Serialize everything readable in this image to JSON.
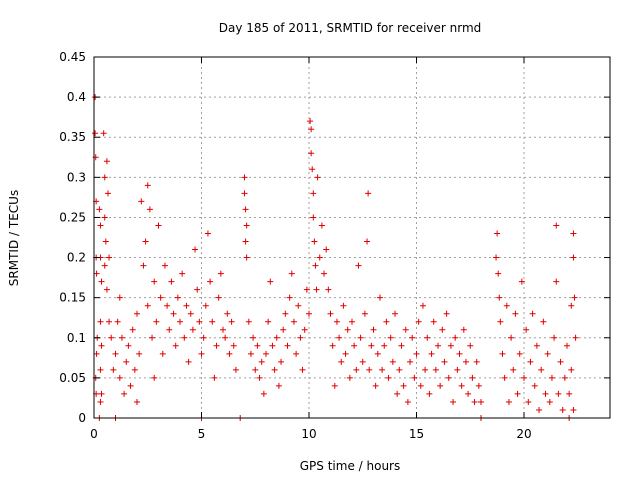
{
  "chart_data": {
    "type": "scatter",
    "title": "Day 185 of 2011, SRMTID for receiver nrmd",
    "xlabel": "GPS time / hours",
    "ylabel": "SRMTID / TECUs",
    "xlim": [
      0,
      24
    ],
    "ylim": [
      0,
      0.45
    ],
    "xticks": [
      "0",
      "5",
      "10",
      "15",
      "20"
    ],
    "yticks": [
      "0",
      "0.05",
      "0.1",
      "0.15",
      "0.2",
      "0.25",
      "0.3",
      "0.35",
      "0.4",
      "0.45"
    ],
    "grid": true,
    "marker": "+",
    "color": "#e00000",
    "series": [
      {
        "points": [
          [
            0.05,
            0.4
          ],
          [
            0.05,
            0.355
          ],
          [
            0.08,
            0.325
          ],
          [
            0.1,
            0.27
          ],
          [
            0.1,
            0.2
          ],
          [
            0.12,
            0.18
          ],
          [
            0.15,
            0.1
          ],
          [
            0.12,
            0.08
          ],
          [
            0.08,
            0.05
          ],
          [
            0.1,
            0.03
          ],
          [
            0.25,
            0.26
          ],
          [
            0.3,
            0.24
          ],
          [
            0.3,
            0.2
          ],
          [
            0.35,
            0.17
          ],
          [
            0.3,
            0.12
          ],
          [
            0.35,
            0.09
          ],
          [
            0.3,
            0.06
          ],
          [
            0.35,
            0.03
          ],
          [
            0.3,
            0.02
          ],
          [
            0.25,
            0.0
          ],
          [
            0.45,
            0.355
          ],
          [
            0.5,
            0.3
          ],
          [
            0.5,
            0.25
          ],
          [
            0.55,
            0.22
          ],
          [
            0.5,
            0.19
          ],
          [
            0.6,
            0.16
          ],
          [
            0.6,
            0.32
          ],
          [
            0.65,
            0.28
          ],
          [
            0.7,
            0.2
          ],
          [
            0.7,
            0.12
          ],
          [
            0.8,
            0.1
          ],
          [
            0.9,
            0.06
          ],
          [
            1.0,
            0.0
          ],
          [
            1.0,
            0.08
          ],
          [
            1.1,
            0.12
          ],
          [
            1.2,
            0.05
          ],
          [
            1.2,
            0.15
          ],
          [
            1.3,
            0.1
          ],
          [
            1.4,
            0.03
          ],
          [
            1.5,
            0.07
          ],
          [
            1.6,
            0.09
          ],
          [
            1.7,
            0.04
          ],
          [
            1.8,
            0.11
          ],
          [
            1.9,
            0.06
          ],
          [
            2.0,
            0.13
          ],
          [
            2.0,
            0.02
          ],
          [
            2.1,
            0.08
          ],
          [
            2.2,
            0.27
          ],
          [
            2.3,
            0.19
          ],
          [
            2.4,
            0.22
          ],
          [
            2.5,
            0.29
          ],
          [
            2.5,
            0.14
          ],
          [
            2.6,
            0.26
          ],
          [
            2.7,
            0.1
          ],
          [
            2.8,
            0.17
          ],
          [
            2.8,
            0.05
          ],
          [
            2.9,
            0.12
          ],
          [
            3.0,
            0.24
          ],
          [
            3.1,
            0.15
          ],
          [
            3.2,
            0.08
          ],
          [
            3.3,
            0.19
          ],
          [
            3.4,
            0.14
          ],
          [
            3.5,
            0.11
          ],
          [
            3.6,
            0.17
          ],
          [
            3.7,
            0.13
          ],
          [
            3.8,
            0.09
          ],
          [
            3.9,
            0.15
          ],
          [
            4.0,
            0.12
          ],
          [
            4.1,
            0.18
          ],
          [
            4.2,
            0.1
          ],
          [
            4.3,
            0.14
          ],
          [
            4.4,
            0.07
          ],
          [
            4.5,
            0.13
          ],
          [
            4.6,
            0.11
          ],
          [
            4.7,
            0.21
          ],
          [
            4.8,
            0.16
          ],
          [
            4.9,
            0.12
          ],
          [
            5.0,
            0.08
          ],
          [
            5.0,
            0.0
          ],
          [
            5.1,
            0.1
          ],
          [
            5.2,
            0.14
          ],
          [
            5.3,
            0.23
          ],
          [
            5.4,
            0.17
          ],
          [
            5.5,
            0.12
          ],
          [
            5.6,
            0.05
          ],
          [
            5.7,
            0.09
          ],
          [
            5.8,
            0.15
          ],
          [
            5.9,
            0.18
          ],
          [
            6.0,
            0.11
          ],
          [
            6.1,
            0.1
          ],
          [
            6.2,
            0.13
          ],
          [
            6.3,
            0.08
          ],
          [
            6.4,
            0.12
          ],
          [
            6.5,
            0.09
          ],
          [
            6.6,
            0.06
          ],
          [
            6.8,
            0.0
          ],
          [
            7.0,
            0.3
          ],
          [
            7.0,
            0.28
          ],
          [
            7.05,
            0.26
          ],
          [
            7.1,
            0.24
          ],
          [
            7.05,
            0.22
          ],
          [
            7.1,
            0.2
          ],
          [
            7.2,
            0.12
          ],
          [
            7.3,
            0.08
          ],
          [
            7.4,
            0.1
          ],
          [
            7.5,
            0.06
          ],
          [
            7.6,
            0.09
          ],
          [
            7.7,
            0.05
          ],
          [
            7.8,
            0.07
          ],
          [
            7.9,
            0.03
          ],
          [
            8.0,
            0.08
          ],
          [
            8.1,
            0.12
          ],
          [
            8.2,
            0.17
          ],
          [
            8.3,
            0.09
          ],
          [
            8.4,
            0.06
          ],
          [
            8.5,
            0.1
          ],
          [
            8.6,
            0.04
          ],
          [
            8.7,
            0.07
          ],
          [
            8.8,
            0.11
          ],
          [
            8.9,
            0.13
          ],
          [
            9.0,
            0.09
          ],
          [
            9.1,
            0.15
          ],
          [
            9.2,
            0.18
          ],
          [
            9.3,
            0.12
          ],
          [
            9.4,
            0.08
          ],
          [
            9.5,
            0.14
          ],
          [
            9.6,
            0.1
          ],
          [
            9.7,
            0.06
          ],
          [
            9.8,
            0.11
          ],
          [
            9.9,
            0.16
          ],
          [
            10.0,
            0.13
          ],
          [
            10.05,
            0.37
          ],
          [
            10.1,
            0.36
          ],
          [
            10.1,
            0.33
          ],
          [
            10.15,
            0.31
          ],
          [
            10.2,
            0.28
          ],
          [
            10.2,
            0.25
          ],
          [
            10.25,
            0.22
          ],
          [
            10.3,
            0.19
          ],
          [
            10.35,
            0.16
          ],
          [
            10.4,
            0.3
          ],
          [
            10.5,
            0.2
          ],
          [
            10.6,
            0.24
          ],
          [
            10.7,
            0.18
          ],
          [
            10.8,
            0.21
          ],
          [
            10.9,
            0.16
          ],
          [
            11.0,
            0.13
          ],
          [
            11.1,
            0.09
          ],
          [
            11.2,
            0.04
          ],
          [
            11.3,
            0.12
          ],
          [
            11.4,
            0.1
          ],
          [
            11.5,
            0.07
          ],
          [
            11.6,
            0.14
          ],
          [
            11.7,
            0.08
          ],
          [
            11.8,
            0.11
          ],
          [
            11.9,
            0.05
          ],
          [
            12.0,
            0.12
          ],
          [
            12.1,
            0.09
          ],
          [
            12.2,
            0.06
          ],
          [
            12.3,
            0.19
          ],
          [
            12.4,
            0.1
          ],
          [
            12.5,
            0.07
          ],
          [
            12.6,
            0.13
          ],
          [
            12.7,
            0.22
          ],
          [
            12.75,
            0.28
          ],
          [
            12.8,
            0.06
          ],
          [
            12.9,
            0.09
          ],
          [
            13.0,
            0.11
          ],
          [
            13.1,
            0.04
          ],
          [
            13.2,
            0.08
          ],
          [
            13.3,
            0.15
          ],
          [
            13.4,
            0.06
          ],
          [
            13.5,
            0.09
          ],
          [
            13.6,
            0.12
          ],
          [
            13.7,
            0.05
          ],
          [
            13.8,
            0.1
          ],
          [
            13.9,
            0.07
          ],
          [
            14.0,
            0.13
          ],
          [
            14.1,
            0.03
          ],
          [
            14.2,
            0.06
          ],
          [
            14.3,
            0.09
          ],
          [
            14.4,
            0.04
          ],
          [
            14.5,
            0.11
          ],
          [
            14.6,
            0.02
          ],
          [
            14.7,
            0.07
          ],
          [
            14.8,
            0.1
          ],
          [
            14.9,
            0.05
          ],
          [
            15.0,
            0.08
          ],
          [
            15.1,
            0.12
          ],
          [
            15.2,
            0.04
          ],
          [
            15.3,
            0.14
          ],
          [
            15.4,
            0.06
          ],
          [
            15.5,
            0.1
          ],
          [
            15.6,
            0.03
          ],
          [
            15.7,
            0.08
          ],
          [
            15.8,
            0.12
          ],
          [
            15.9,
            0.06
          ],
          [
            16.0,
            0.09
          ],
          [
            16.1,
            0.04
          ],
          [
            16.2,
            0.11
          ],
          [
            16.3,
            0.07
          ],
          [
            16.4,
            0.13
          ],
          [
            16.5,
            0.05
          ],
          [
            16.6,
            0.09
          ],
          [
            16.7,
            0.02
          ],
          [
            16.8,
            0.1
          ],
          [
            16.9,
            0.06
          ],
          [
            17.0,
            0.08
          ],
          [
            17.1,
            0.04
          ],
          [
            17.2,
            0.11
          ],
          [
            17.3,
            0.07
          ],
          [
            17.4,
            0.03
          ],
          [
            17.5,
            0.09
          ],
          [
            17.6,
            0.05
          ],
          [
            17.7,
            0.02
          ],
          [
            17.8,
            0.07
          ],
          [
            17.9,
            0.04
          ],
          [
            18.0,
            0.0
          ],
          [
            18.0,
            0.02
          ],
          [
            18.7,
            0.2
          ],
          [
            18.75,
            0.23
          ],
          [
            18.8,
            0.18
          ],
          [
            18.85,
            0.15
          ],
          [
            18.9,
            0.12
          ],
          [
            19.0,
            0.08
          ],
          [
            19.1,
            0.05
          ],
          [
            19.2,
            0.14
          ],
          [
            19.3,
            0.02
          ],
          [
            19.4,
            0.1
          ],
          [
            19.5,
            0.06
          ],
          [
            19.6,
            0.13
          ],
          [
            19.7,
            0.03
          ],
          [
            19.8,
            0.08
          ],
          [
            19.9,
            0.17
          ],
          [
            20.0,
            0.05
          ],
          [
            20.1,
            0.11
          ],
          [
            20.2,
            0.02
          ],
          [
            20.3,
            0.07
          ],
          [
            20.4,
            0.13
          ],
          [
            20.5,
            0.04
          ],
          [
            20.6,
            0.09
          ],
          [
            20.7,
            0.01
          ],
          [
            20.8,
            0.06
          ],
          [
            20.9,
            0.12
          ],
          [
            21.0,
            0.03
          ],
          [
            21.1,
            0.08
          ],
          [
            21.2,
            0.02
          ],
          [
            21.3,
            0.05
          ],
          [
            21.4,
            0.1
          ],
          [
            21.5,
            0.24
          ],
          [
            21.5,
            0.17
          ],
          [
            21.6,
            0.03
          ],
          [
            21.7,
            0.07
          ],
          [
            21.8,
            0.01
          ],
          [
            21.9,
            0.05
          ],
          [
            22.0,
            0.09
          ],
          [
            22.1,
            0.03
          ],
          [
            22.2,
            0.14
          ],
          [
            22.2,
            0.06
          ],
          [
            22.3,
            0.23
          ],
          [
            22.3,
            0.2
          ],
          [
            22.35,
            0.15
          ],
          [
            22.4,
            0.1
          ],
          [
            22.3,
            0.01
          ],
          [
            22.1,
            0.0
          ]
        ]
      }
    ]
  }
}
